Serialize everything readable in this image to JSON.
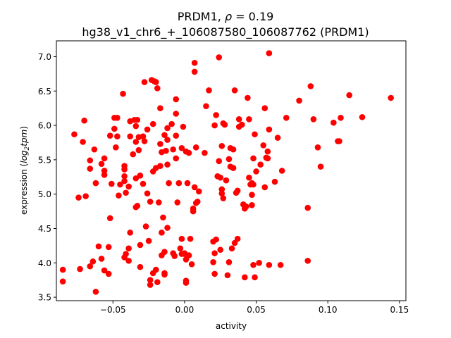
{
  "chart_data": {
    "type": "scatter",
    "title_line1": "PRDM1, ",
    "title_rho": "ρ",
    "title_rho_value": " = 0.19",
    "title_line2": "hg38_v1_chr6_+_106087580_106087762 (PRDM1)",
    "xlabel": "activity",
    "ylabel_prefix": "expression (",
    "ylabel_math_main": "log",
    "ylabel_math_sub": "2",
    "ylabel_math_tail": "tpm",
    "ylabel_suffix": ")",
    "xlim": [
      -0.0895,
      0.1545
    ],
    "ylim": [
      3.45,
      7.23
    ],
    "xticks": [
      -0.05,
      0.0,
      0.05,
      0.1,
      0.15
    ],
    "xtick_labels": [
      "−0.05",
      "0.00",
      "0.05",
      "0.10",
      "0.15"
    ],
    "yticks": [
      3.5,
      4.0,
      4.5,
      5.0,
      5.5,
      6.0,
      6.5,
      7.0
    ],
    "ytick_labels": [
      "3.5",
      "4.0",
      "4.5",
      "5.0",
      "5.5",
      "6.0",
      "6.5",
      "7.0"
    ],
    "grid": false,
    "marker_color": "#ff0000",
    "points": [
      [
        -0.085,
        3.9
      ],
      [
        -0.085,
        3.73
      ],
      [
        -0.077,
        5.87
      ],
      [
        -0.074,
        4.95
      ],
      [
        -0.073,
        3.91
      ],
      [
        -0.07,
        6.07
      ],
      [
        -0.071,
        5.76
      ],
      [
        -0.069,
        4.97
      ],
      [
        -0.066,
        5.49
      ],
      [
        -0.066,
        5.37
      ],
      [
        -0.066,
        3.95
      ],
      [
        -0.064,
        4.02
      ],
      [
        -0.063,
        5.65
      ],
      [
        -0.062,
        5.16
      ],
      [
        -0.062,
        3.58
      ],
      [
        -0.06,
        4.24
      ],
      [
        -0.058,
        5.44
      ],
      [
        -0.058,
        4.06
      ],
      [
        -0.056,
        5.34
      ],
      [
        -0.056,
        5.28
      ],
      [
        -0.056,
        5.52
      ],
      [
        -0.056,
        3.89
      ],
      [
        -0.053,
        3.84
      ],
      [
        -0.053,
        4.23
      ],
      [
        -0.052,
        4.65
      ],
      [
        -0.052,
        5.85
      ],
      [
        -0.051,
        5.15
      ],
      [
        -0.049,
        6.11
      ],
      [
        -0.049,
        5.95
      ],
      [
        -0.048,
        5.68
      ],
      [
        -0.047,
        6.11
      ],
      [
        -0.047,
        5.84
      ],
      [
        -0.046,
        4.98
      ],
      [
        -0.045,
        5.14
      ],
      [
        -0.043,
        6.46
      ],
      [
        -0.042,
        5.41
      ],
      [
        -0.042,
        5.36
      ],
      [
        -0.042,
        5.26
      ],
      [
        -0.042,
        5.19
      ],
      [
        -0.042,
        4.08
      ],
      [
        -0.041,
        4.13
      ],
      [
        -0.041,
        5.02
      ],
      [
        -0.039,
        5.11
      ],
      [
        -0.039,
        4.21
      ],
      [
        -0.039,
        4.03
      ],
      [
        -0.038,
        5.84
      ],
      [
        -0.038,
        6.06
      ],
      [
        -0.038,
        4.44
      ],
      [
        -0.036,
        5.58
      ],
      [
        -0.035,
        6.08
      ],
      [
        -0.034,
        5.99
      ],
      [
        -0.034,
        5.76
      ],
      [
        -0.034,
        5.23
      ],
      [
        -0.034,
        4.81
      ],
      [
        -0.033,
        4.83
      ],
      [
        -0.033,
        6.08
      ],
      [
        -0.032,
        5.64
      ],
      [
        -0.032,
        5.83
      ],
      [
        -0.031,
        5.27
      ],
      [
        -0.031,
        4.26
      ],
      [
        -0.031,
        3.94
      ],
      [
        -0.029,
        5.15
      ],
      [
        -0.029,
        5.84
      ],
      [
        -0.028,
        6.63
      ],
      [
        -0.028,
        5.77
      ],
      [
        -0.026,
        5.94
      ],
      [
        -0.027,
        4.53
      ],
      [
        -0.026,
        5.01
      ],
      [
        -0.025,
        4.32
      ],
      [
        -0.024,
        4.89
      ],
      [
        -0.024,
        3.75
      ],
      [
        -0.024,
        3.68
      ],
      [
        -0.023,
        6.66
      ],
      [
        -0.022,
        6.02
      ],
      [
        -0.022,
        5.33
      ],
      [
        -0.022,
        3.85
      ],
      [
        -0.021,
        6.64
      ],
      [
        -0.02,
        6.63
      ],
      [
        -0.02,
        5.38
      ],
      [
        -0.02,
        3.9
      ],
      [
        -0.019,
        6.54
      ],
      [
        -0.019,
        3.72
      ],
      [
        -0.018,
        4.88
      ],
      [
        -0.017,
        5.41
      ],
      [
        -0.017,
        6.25
      ],
      [
        -0.017,
        5.73
      ],
      [
        -0.016,
        5.61
      ],
      [
        -0.016,
        4.44
      ],
      [
        -0.016,
        4.11
      ],
      [
        -0.015,
        4.66
      ],
      [
        -0.014,
        5.86
      ],
      [
        -0.014,
        4.16
      ],
      [
        -0.014,
        3.85
      ],
      [
        -0.014,
        3.83
      ],
      [
        -0.013,
        5.63
      ],
      [
        -0.012,
        4.51
      ],
      [
        -0.012,
        5.79
      ],
      [
        -0.012,
        5.96
      ],
      [
        -0.012,
        5.43
      ],
      [
        -0.011,
        5.16
      ],
      [
        -0.009,
        6.02
      ],
      [
        -0.008,
        5.65
      ],
      [
        -0.008,
        4.14
      ],
      [
        -0.007,
        4.1
      ],
      [
        -0.006,
        6.38
      ],
      [
        -0.006,
        5.52
      ],
      [
        -0.006,
        6.17
      ],
      [
        -0.006,
        5.85
      ],
      [
        -0.005,
        4.88
      ],
      [
        -0.004,
        5.16
      ],
      [
        -0.003,
        4.21
      ],
      [
        -0.002,
        4.35
      ],
      [
        -0.002,
        5.67
      ],
      [
        -0.002,
        4.13
      ],
      [
        -0.001,
        5.98
      ],
      [
        0.0,
        4.13
      ],
      [
        0.0,
        4.14
      ],
      [
        0.001,
        5.62
      ],
      [
        0.001,
        3.74
      ],
      [
        0.001,
        3.71
      ],
      [
        0.001,
        4.05
      ],
      [
        0.002,
        5.16
      ],
      [
        0.003,
        5.6
      ],
      [
        0.003,
        4.11
      ],
      [
        0.004,
        4.35
      ],
      [
        0.005,
        3.98
      ],
      [
        0.006,
        4.79
      ],
      [
        0.006,
        4.75
      ],
      [
        0.007,
        6.91
      ],
      [
        0.007,
        5.1
      ],
      [
        0.007,
        6.78
      ],
      [
        0.008,
        4.87
      ],
      [
        0.008,
        5.68
      ],
      [
        0.009,
        4.89
      ],
      [
        0.01,
        5.04
      ],
      [
        0.014,
        5.6
      ],
      [
        0.015,
        6.28
      ],
      [
        0.017,
        6.51
      ],
      [
        0.02,
        4.31
      ],
      [
        0.02,
        4.01
      ],
      [
        0.021,
        6.0
      ],
      [
        0.021,
        3.84
      ],
      [
        0.021,
        4.14
      ],
      [
        0.022,
        6.15
      ],
      [
        0.022,
        4.34
      ],
      [
        0.023,
        5.26
      ],
      [
        0.024,
        6.99
      ],
      [
        0.024,
        5.48
      ],
      [
        0.025,
        5.24
      ],
      [
        0.025,
        4.19
      ],
      [
        0.026,
        5.07
      ],
      [
        0.026,
        5.01
      ],
      [
        0.026,
        5.7
      ],
      [
        0.027,
        6.03
      ],
      [
        0.027,
        4.94
      ],
      [
        0.028,
        6.01
      ],
      [
        0.029,
        5.2
      ],
      [
        0.03,
        3.82
      ],
      [
        0.031,
        5.51
      ],
      [
        0.031,
        4.01
      ],
      [
        0.032,
        5.4
      ],
      [
        0.032,
        5.67
      ],
      [
        0.033,
        4.21
      ],
      [
        0.034,
        5.65
      ],
      [
        0.034,
        5.38
      ],
      [
        0.035,
        6.51
      ],
      [
        0.035,
        4.29
      ],
      [
        0.036,
        5.02
      ],
      [
        0.037,
        5.05
      ],
      [
        0.037,
        4.35
      ],
      [
        0.038,
        6.09
      ],
      [
        0.038,
        5.98
      ],
      [
        0.04,
        6.01
      ],
      [
        0.041,
        4.85
      ],
      [
        0.042,
        3.79
      ],
      [
        0.042,
        4.79
      ],
      [
        0.043,
        4.82
      ],
      [
        0.044,
        6.4
      ],
      [
        0.045,
        5.24
      ],
      [
        0.045,
        6.09
      ],
      [
        0.046,
        5.14
      ],
      [
        0.047,
        4.99
      ],
      [
        0.047,
        4.84
      ],
      [
        0.047,
        5.16
      ],
      [
        0.048,
        5.14
      ],
      [
        0.048,
        5.52
      ],
      [
        0.048,
        3.97
      ],
      [
        0.049,
        5.87
      ],
      [
        0.049,
        3.79
      ],
      [
        0.05,
        5.33
      ],
      [
        0.052,
        4.0
      ],
      [
        0.053,
        5.43
      ],
      [
        0.055,
        5.71
      ],
      [
        0.056,
        6.25
      ],
      [
        0.056,
        5.1
      ],
      [
        0.057,
        5.53
      ],
      [
        0.058,
        5.62
      ],
      [
        0.058,
        5.52
      ],
      [
        0.059,
        5.94
      ],
      [
        0.059,
        3.97
      ],
      [
        0.059,
        7.05
      ],
      [
        0.063,
        5.18
      ],
      [
        0.065,
        5.82
      ],
      [
        0.067,
        3.97
      ],
      [
        0.068,
        5.34
      ],
      [
        0.071,
        6.11
      ],
      [
        0.08,
        6.36
      ],
      [
        0.086,
        4.8
      ],
      [
        0.086,
        4.03
      ],
      [
        0.088,
        6.57
      ],
      [
        0.09,
        6.09
      ],
      [
        0.093,
        5.68
      ],
      [
        0.095,
        5.4
      ],
      [
        0.104,
        6.04
      ],
      [
        0.107,
        5.77
      ],
      [
        0.108,
        5.77
      ],
      [
        0.109,
        6.11
      ],
      [
        0.115,
        6.44
      ],
      [
        0.124,
        6.12
      ],
      [
        0.144,
        6.4
      ]
    ]
  }
}
